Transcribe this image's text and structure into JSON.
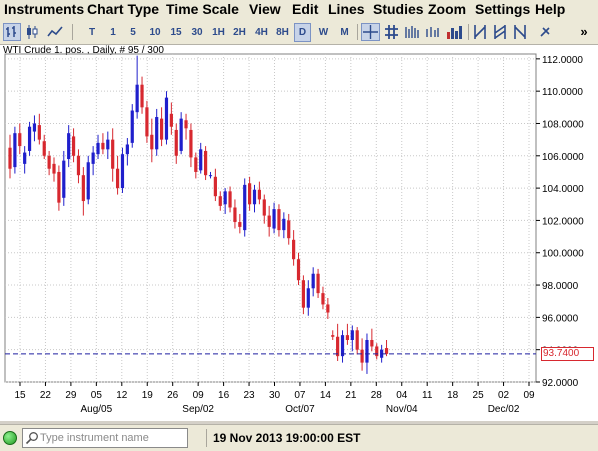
{
  "menu": [
    "Instruments",
    "Chart Type",
    "Time Scale",
    "View",
    "Edit",
    "Lines",
    "Studies",
    "Zoom",
    "Settings",
    "Help"
  ],
  "toolbar": {
    "timescale_buttons": [
      "T",
      "1",
      "5",
      "10",
      "15",
      "30",
      "1H",
      "2H",
      "4H",
      "8H",
      "D",
      "W",
      "M"
    ],
    "active_timescale": "D",
    "overflow": "»"
  },
  "chart": {
    "title": "WTI Crude 1. pos. , Daily, # 95 / 300",
    "current_price_label": "93.7400",
    "colors": {
      "up": "#1f1fcc",
      "down": "#d7282f",
      "price_line": "#1f1fa0",
      "grid": "#c8c8c8"
    }
  },
  "chart_data": {
    "type": "candlestick",
    "title": "WTI Crude 1. pos. , Daily, # 95 / 300",
    "y_ticks": [
      "112.0000",
      "110.0000",
      "108.0000",
      "106.0000",
      "104.0000",
      "102.0000",
      "100.0000",
      "98.0000",
      "96.0000",
      "94.0000",
      "92.0000"
    ],
    "ylim": [
      92,
      112.3
    ],
    "x_day_labels": [
      "15",
      "22",
      "29",
      "05",
      "12",
      "19",
      "26",
      "09",
      "16",
      "23",
      "30",
      "07",
      "14",
      "21",
      "28",
      "04",
      "11",
      "18",
      "25",
      "02",
      "09"
    ],
    "x_month_labels": [
      "Aug/05",
      "Sep/02",
      "Oct/07",
      "Nov/04",
      "Dec/02"
    ],
    "current_price": 93.74,
    "grid": true,
    "candles": [
      {
        "o": 106.5,
        "h": 107.3,
        "l": 104.6,
        "c": 105.2
      },
      {
        "o": 105.3,
        "h": 107.8,
        "l": 104.9,
        "c": 107.4
      },
      {
        "o": 107.4,
        "h": 108.0,
        "l": 106.1,
        "c": 106.6
      },
      {
        "o": 105.5,
        "h": 106.6,
        "l": 104.9,
        "c": 106.2
      },
      {
        "o": 106.3,
        "h": 108.1,
        "l": 106.0,
        "c": 107.8
      },
      {
        "o": 107.5,
        "h": 108.5,
        "l": 106.9,
        "c": 108.0
      },
      {
        "o": 107.9,
        "h": 108.6,
        "l": 106.7,
        "c": 107.0
      },
      {
        "o": 106.9,
        "h": 107.3,
        "l": 105.8,
        "c": 106.0
      },
      {
        "o": 106.0,
        "h": 106.3,
        "l": 104.8,
        "c": 105.2
      },
      {
        "o": 105.5,
        "h": 105.9,
        "l": 104.4,
        "c": 104.9
      },
      {
        "o": 105.0,
        "h": 105.4,
        "l": 102.6,
        "c": 103.1
      },
      {
        "o": 103.4,
        "h": 106.3,
        "l": 102.9,
        "c": 105.7
      },
      {
        "o": 105.8,
        "h": 107.9,
        "l": 105.3,
        "c": 107.4
      },
      {
        "o": 107.2,
        "h": 107.7,
        "l": 105.6,
        "c": 106.0
      },
      {
        "o": 106.0,
        "h": 106.4,
        "l": 104.3,
        "c": 104.8
      },
      {
        "o": 104.8,
        "h": 105.3,
        "l": 102.3,
        "c": 103.2
      },
      {
        "o": 103.3,
        "h": 106.0,
        "l": 103.0,
        "c": 105.6
      },
      {
        "o": 105.5,
        "h": 106.6,
        "l": 104.8,
        "c": 106.2
      },
      {
        "o": 106.1,
        "h": 107.3,
        "l": 105.8,
        "c": 106.8
      },
      {
        "o": 106.8,
        "h": 107.4,
        "l": 106.1,
        "c": 106.4
      },
      {
        "o": 106.4,
        "h": 107.5,
        "l": 105.8,
        "c": 107.0
      },
      {
        "o": 107.0,
        "h": 107.7,
        "l": 104.4,
        "c": 105.2
      },
      {
        "o": 105.2,
        "h": 106.0,
        "l": 103.6,
        "c": 104.0
      },
      {
        "o": 104.0,
        "h": 106.5,
        "l": 103.7,
        "c": 106.1
      },
      {
        "o": 106.1,
        "h": 107.1,
        "l": 105.4,
        "c": 106.7
      },
      {
        "o": 106.8,
        "h": 109.2,
        "l": 106.5,
        "c": 108.8
      },
      {
        "o": 108.7,
        "h": 112.2,
        "l": 108.3,
        "c": 110.4
      },
      {
        "o": 110.4,
        "h": 110.9,
        "l": 108.6,
        "c": 109.0
      },
      {
        "o": 109.0,
        "h": 109.4,
        "l": 106.8,
        "c": 107.2
      },
      {
        "o": 107.3,
        "h": 108.3,
        "l": 105.6,
        "c": 106.4
      },
      {
        "o": 106.4,
        "h": 108.9,
        "l": 106.0,
        "c": 108.4
      },
      {
        "o": 108.3,
        "h": 109.0,
        "l": 106.6,
        "c": 107.0
      },
      {
        "o": 107.0,
        "h": 110.0,
        "l": 106.7,
        "c": 109.6
      },
      {
        "o": 108.6,
        "h": 109.3,
        "l": 107.3,
        "c": 107.8
      },
      {
        "o": 107.6,
        "h": 108.0,
        "l": 105.5,
        "c": 106.0
      },
      {
        "o": 106.3,
        "h": 108.7,
        "l": 106.1,
        "c": 108.3
      },
      {
        "o": 108.2,
        "h": 108.6,
        "l": 107.0,
        "c": 107.7
      },
      {
        "o": 107.6,
        "h": 108.0,
        "l": 105.3,
        "c": 105.9
      },
      {
        "o": 105.9,
        "h": 106.2,
        "l": 104.6,
        "c": 105.0
      },
      {
        "o": 105.1,
        "h": 106.8,
        "l": 104.9,
        "c": 106.4
      },
      {
        "o": 106.3,
        "h": 106.6,
        "l": 104.5,
        "c": 104.8
      },
      {
        "o": 104.8,
        "h": 105.0,
        "l": 104.6,
        "c": 104.8
      },
      {
        "o": 104.7,
        "h": 105.2,
        "l": 103.2,
        "c": 103.5
      },
      {
        "o": 103.5,
        "h": 103.8,
        "l": 102.6,
        "c": 102.9
      },
      {
        "o": 103.0,
        "h": 104.0,
        "l": 102.4,
        "c": 103.8
      },
      {
        "o": 103.8,
        "h": 104.1,
        "l": 102.5,
        "c": 102.8
      },
      {
        "o": 102.8,
        "h": 103.3,
        "l": 101.5,
        "c": 101.9
      },
      {
        "o": 101.9,
        "h": 102.4,
        "l": 101.2,
        "c": 101.6
      },
      {
        "o": 101.4,
        "h": 104.6,
        "l": 101.0,
        "c": 104.2
      },
      {
        "o": 104.3,
        "h": 104.7,
        "l": 102.6,
        "c": 103.0
      },
      {
        "o": 103.0,
        "h": 104.2,
        "l": 102.5,
        "c": 103.9
      },
      {
        "o": 103.9,
        "h": 104.4,
        "l": 103.0,
        "c": 103.3
      },
      {
        "o": 103.3,
        "h": 103.6,
        "l": 101.8,
        "c": 102.3
      },
      {
        "o": 102.3,
        "h": 102.9,
        "l": 101.0,
        "c": 101.6
      },
      {
        "o": 101.5,
        "h": 103.1,
        "l": 101.2,
        "c": 102.7
      },
      {
        "o": 102.7,
        "h": 103.0,
        "l": 101.0,
        "c": 101.4
      },
      {
        "o": 101.4,
        "h": 102.5,
        "l": 100.9,
        "c": 102.1
      },
      {
        "o": 102.0,
        "h": 102.4,
        "l": 100.5,
        "c": 100.9
      },
      {
        "o": 100.8,
        "h": 101.4,
        "l": 99.2,
        "c": 99.6
      },
      {
        "o": 99.6,
        "h": 100.0,
        "l": 98.0,
        "c": 98.3
      },
      {
        "o": 98.3,
        "h": 98.6,
        "l": 96.2,
        "c": 96.6
      },
      {
        "o": 96.6,
        "h": 98.3,
        "l": 96.1,
        "c": 97.8
      },
      {
        "o": 97.8,
        "h": 99.1,
        "l": 97.3,
        "c": 98.7
      },
      {
        "o": 98.7,
        "h": 99.0,
        "l": 97.2,
        "c": 97.5
      },
      {
        "o": 97.5,
        "h": 97.9,
        "l": 96.5,
        "c": 96.8
      },
      {
        "o": 96.8,
        "h": 97.2,
        "l": 95.9,
        "c": 96.3
      },
      {
        "o": 94.9,
        "h": 95.2,
        "l": 94.6,
        "c": 94.8
      },
      {
        "o": 94.8,
        "h": 95.6,
        "l": 93.3,
        "c": 93.6
      },
      {
        "o": 93.6,
        "h": 95.2,
        "l": 93.2,
        "c": 94.9
      },
      {
        "o": 94.9,
        "h": 95.6,
        "l": 94.3,
        "c": 94.6
      },
      {
        "o": 94.6,
        "h": 95.5,
        "l": 93.9,
        "c": 95.2
      },
      {
        "o": 95.2,
        "h": 95.4,
        "l": 93.7,
        "c": 94.0
      },
      {
        "o": 94.0,
        "h": 94.7,
        "l": 92.7,
        "c": 93.2
      },
      {
        "o": 93.2,
        "h": 95.0,
        "l": 92.5,
        "c": 94.6
      },
      {
        "o": 94.6,
        "h": 95.3,
        "l": 93.9,
        "c": 94.2
      },
      {
        "o": 94.2,
        "h": 94.4,
        "l": 93.4,
        "c": 93.6
      },
      {
        "o": 93.5,
        "h": 94.3,
        "l": 93.2,
        "c": 94.0
      },
      {
        "o": 94.1,
        "h": 94.6,
        "l": 93.6,
        "c": 93.74
      }
    ]
  },
  "statusbar": {
    "search_placeholder": "Type instrument name",
    "timestamp": "19 Nov 2013 19:00:00 EST"
  }
}
